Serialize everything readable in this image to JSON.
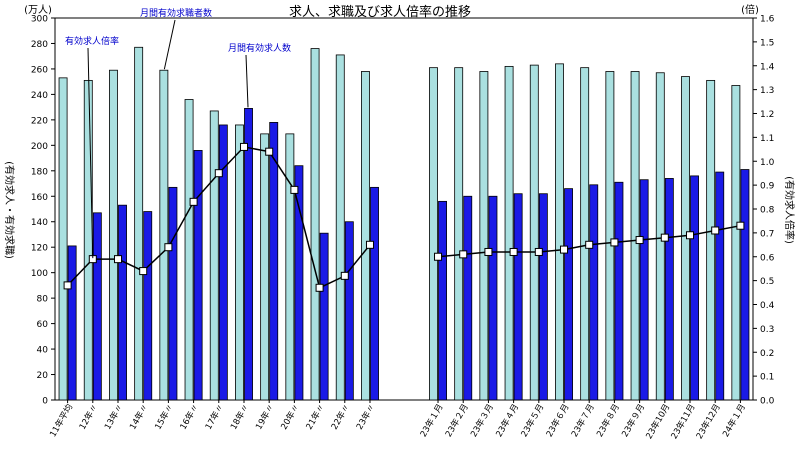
{
  "chart_data": {
    "type": "bar",
    "title": "求人、求職及び求人倍率の推移",
    "left_unit": "(万人)",
    "right_unit": "(倍)",
    "left_axis_label": "(有効求人・有効求職)",
    "right_axis_label": "(有効求人倍率)",
    "ylim_left": [
      0,
      300
    ],
    "ylim_right": [
      0,
      1.6
    ],
    "left_ticks": [
      "0",
      "20",
      "40",
      "60",
      "80",
      "100",
      "120",
      "140",
      "160",
      "180",
      "200",
      "220",
      "240",
      "260",
      "280",
      "300"
    ],
    "right_ticks": [
      "0.0",
      "0.1",
      "0.2",
      "0.3",
      "0.4",
      "0.5",
      "0.6",
      "0.7",
      "0.8",
      "0.9",
      "1.0",
      "1.1",
      "1.2",
      "1.3",
      "1.4",
      "1.5",
      "1.6"
    ],
    "categories": [
      "11年平均",
      "12年〃",
      "13年〃",
      "14年〃",
      "15年〃",
      "16年〃",
      "17年〃",
      "18年〃",
      "19年〃",
      "20年〃",
      "21年〃",
      "22年〃",
      "23年〃",
      "23年１月",
      "23年２月",
      "23年３月",
      "23年４月",
      "23年５月",
      "23年６月",
      "23年７月",
      "23年８月",
      "23年９月",
      "23年10月",
      "23年11月",
      "23年12月",
      "24年１月"
    ],
    "series": [
      {
        "name": "月間有効求職者数",
        "type": "bar",
        "color": "#aae0e0",
        "values": [
          253,
          251,
          259,
          277,
          259,
          236,
          227,
          216,
          209,
          209,
          276,
          271,
          258,
          261,
          261,
          258,
          262,
          263,
          264,
          261,
          258,
          258,
          257,
          254,
          251,
          247
        ]
      },
      {
        "name": "月間有効求人数",
        "type": "bar",
        "color": "#1a1ae6",
        "values": [
          121,
          147,
          153,
          148,
          167,
          196,
          216,
          229,
          218,
          184,
          131,
          140,
          167,
          156,
          160,
          160,
          162,
          162,
          166,
          169,
          171,
          173,
          174,
          176,
          179,
          181
        ]
      },
      {
        "name": "有効求人倍率",
        "type": "line",
        "axis": "right",
        "color": "#000000",
        "values": [
          0.48,
          0.59,
          0.59,
          0.54,
          0.64,
          0.83,
          0.95,
          1.06,
          1.04,
          0.88,
          0.47,
          0.52,
          0.65,
          0.6,
          0.61,
          0.62,
          0.62,
          0.62,
          0.63,
          0.65,
          0.66,
          0.67,
          0.68,
          0.69,
          0.71,
          0.73
        ]
      }
    ],
    "annotations": [
      {
        "text": "有効求人倍率",
        "series": 2
      },
      {
        "text": "月間有効求職者数",
        "series": 0
      },
      {
        "text": "月間有効求人数",
        "series": 1
      }
    ],
    "grid": false
  }
}
